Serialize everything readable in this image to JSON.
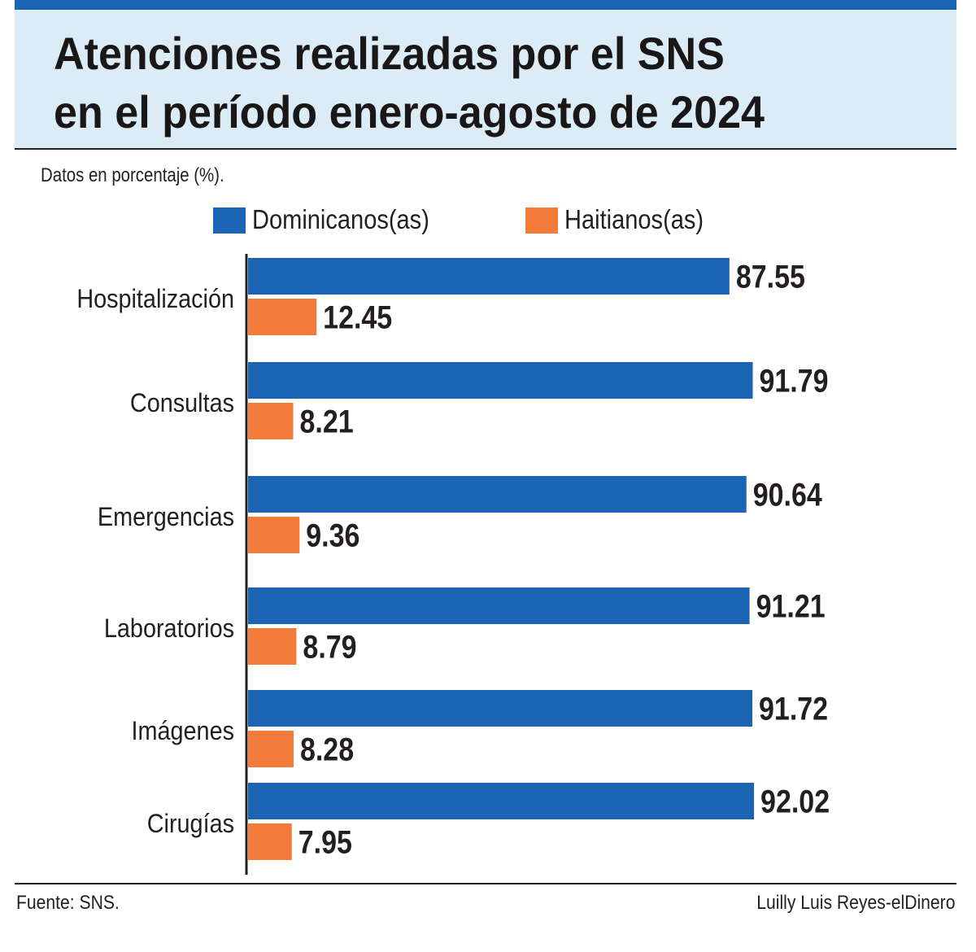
{
  "header": {
    "title_line1": "Atenciones realizadas por el SNS",
    "title_line2": "en el período enero-agosto de 2024"
  },
  "subtitle": "Datos en porcentaje (%).",
  "legend": [
    {
      "label": "Dominicanos(as)",
      "color": "#1b63b3"
    },
    {
      "label": "Haitianos(as)",
      "color": "#f37b3a"
    }
  ],
  "chart_data": {
    "type": "bar",
    "orientation": "horizontal",
    "title": "Atenciones realizadas por el SNS en el período enero-agosto de 2024",
    "unit": "%",
    "categories": [
      "Hospitalización",
      "Consultas",
      "Emergencias",
      "Laboratorios",
      "Imágenes",
      "Cirugías"
    ],
    "series": [
      {
        "name": "Dominicanos(as)",
        "color": "#1b63b3",
        "values": [
          87.55,
          91.79,
          90.64,
          91.21,
          91.72,
          92.02
        ]
      },
      {
        "name": "Haitianos(as)",
        "color": "#f37b3a",
        "values": [
          12.45,
          8.21,
          9.36,
          8.79,
          8.28,
          7.95
        ]
      }
    ],
    "xlim": [
      0,
      100
    ],
    "grid": false,
    "legend_position": "top"
  },
  "footer": {
    "source": "Fuente: SNS.",
    "credit": "Luilly Luis Reyes-elDinero"
  }
}
